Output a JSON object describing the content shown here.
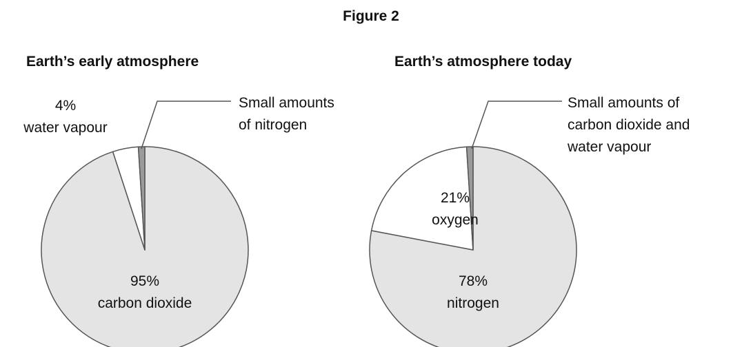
{
  "title": "Figure 2",
  "chart_data": [
    {
      "type": "pie",
      "title": "Earth’s early atmosphere",
      "categories": [
        "carbon dioxide",
        "water vapour",
        "Small amounts of nitrogen"
      ],
      "values": [
        95,
        4,
        1
      ],
      "value_labels": [
        "95%",
        "4%",
        null
      ],
      "colors": [
        "#e4e4e4",
        "#ffffff",
        "#9a9a9a"
      ]
    },
    {
      "type": "pie",
      "title": "Earth’s atmosphere today",
      "categories": [
        "nitrogen",
        "oxygen",
        "Small amounts of carbon dioxide and water vapour"
      ],
      "values": [
        78,
        21,
        1
      ],
      "value_labels": [
        "78%",
        "21%",
        null
      ],
      "colors": [
        "#e4e4e4",
        "#ffffff",
        "#9a9a9a"
      ]
    }
  ]
}
